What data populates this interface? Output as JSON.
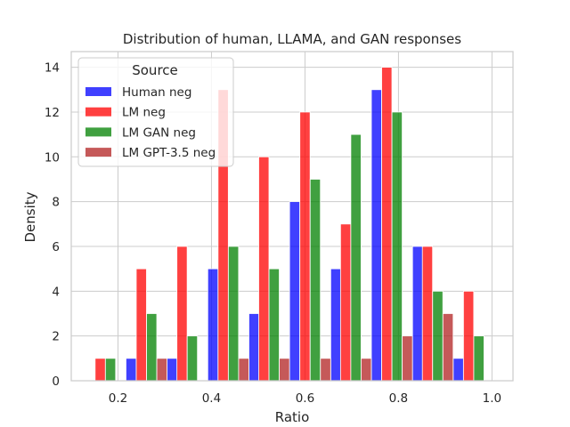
{
  "chart_data": {
    "type": "bar",
    "title": "Distribution of human, LLAMA, and GAN responses",
    "xlabel": "Ratio",
    "ylabel": "Density",
    "xlim": [
      0.1,
      1.045
    ],
    "ylim": [
      0,
      14.7
    ],
    "xticks": [
      0.2,
      0.4,
      0.6,
      0.8,
      1.0
    ],
    "xtick_labels": [
      "0.2",
      "0.4",
      "0.6",
      "0.8",
      "1.0"
    ],
    "yticks": [
      0,
      2,
      4,
      6,
      8,
      10,
      12,
      14
    ],
    "ytick_labels": [
      "0",
      "2",
      "4",
      "6",
      "8",
      "10",
      "12",
      "14"
    ],
    "grid": true,
    "legend": {
      "title": "Source",
      "placement": "top-left"
    },
    "bin_width": 0.0875,
    "series": [
      {
        "name": "Human neg",
        "color": "#0000ff",
        "bars": [
          {
            "x": 0.228,
            "value": 1
          },
          {
            "x": 0.316,
            "value": 1
          },
          {
            "x": 0.403,
            "value": 5
          },
          {
            "x": 0.491,
            "value": 3
          },
          {
            "x": 0.578,
            "value": 8
          },
          {
            "x": 0.666,
            "value": 5
          },
          {
            "x": 0.753,
            "value": 13
          },
          {
            "x": 0.841,
            "value": 6
          },
          {
            "x": 0.928,
            "value": 1
          }
        ]
      },
      {
        "name": "LM neg",
        "color": "#ff0000",
        "bars": [
          {
            "x": 0.162,
            "value": 1
          },
          {
            "x": 0.25,
            "value": 5
          },
          {
            "x": 0.337,
            "value": 6
          },
          {
            "x": 0.425,
            "value": 13
          },
          {
            "x": 0.512,
            "value": 10
          },
          {
            "x": 0.6,
            "value": 12
          },
          {
            "x": 0.687,
            "value": 7
          },
          {
            "x": 0.775,
            "value": 14
          },
          {
            "x": 0.862,
            "value": 6
          },
          {
            "x": 0.95,
            "value": 4
          }
        ]
      },
      {
        "name": "LM GAN neg",
        "color": "#008000",
        "bars": [
          {
            "x": 0.184,
            "value": 1
          },
          {
            "x": 0.272,
            "value": 3
          },
          {
            "x": 0.359,
            "value": 2
          },
          {
            "x": 0.447,
            "value": 6
          },
          {
            "x": 0.534,
            "value": 5
          },
          {
            "x": 0.622,
            "value": 9
          },
          {
            "x": 0.709,
            "value": 11
          },
          {
            "x": 0.797,
            "value": 12
          },
          {
            "x": 0.884,
            "value": 4
          },
          {
            "x": 0.972,
            "value": 2
          }
        ]
      },
      {
        "name": "LM GPT-3.5 neg",
        "color": "#b22222",
        "bars": [
          {
            "x": 0.294,
            "value": 1
          },
          {
            "x": 0.469,
            "value": 1
          },
          {
            "x": 0.556,
            "value": 1
          },
          {
            "x": 0.644,
            "value": 1
          },
          {
            "x": 0.731,
            "value": 1
          },
          {
            "x": 0.819,
            "value": 2
          },
          {
            "x": 0.906,
            "value": 3
          }
        ]
      }
    ]
  }
}
